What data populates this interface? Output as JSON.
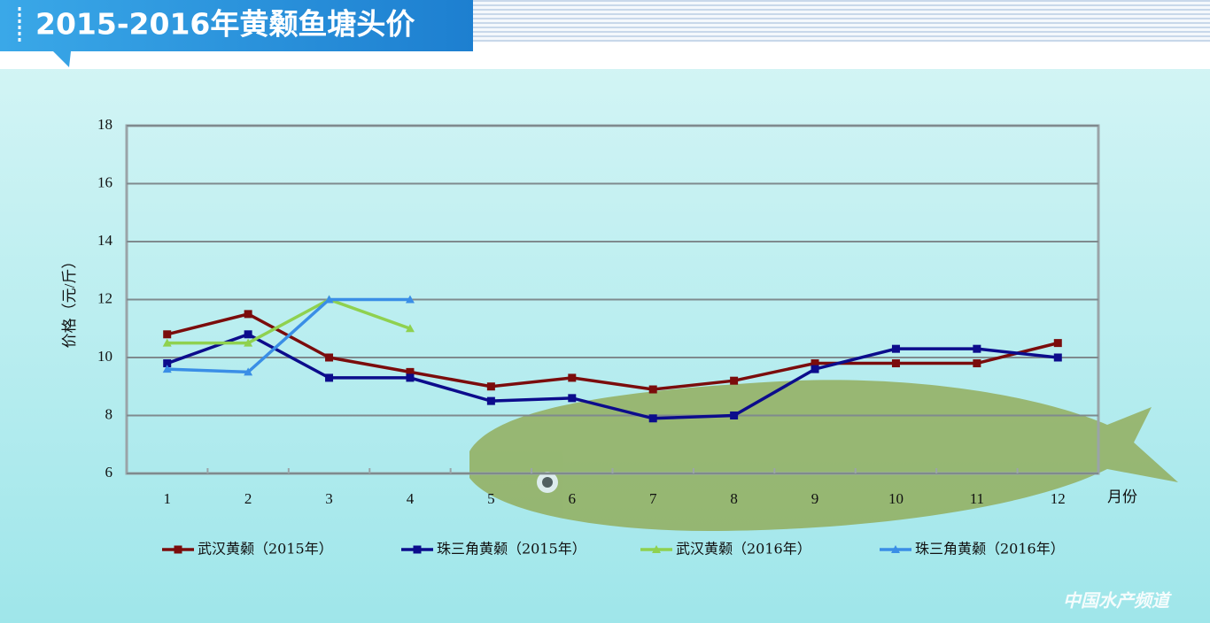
{
  "chart_data": {
    "type": "line",
    "title": "2015-2016年黄颡鱼塘头价",
    "y_label": "价格（元/斤）",
    "x_label": "月份",
    "watermark": "中国水产频道",
    "categories": [
      "1",
      "2",
      "3",
      "4",
      "5",
      "6",
      "7",
      "8",
      "9",
      "10",
      "11",
      "12"
    ],
    "series": [
      {
        "name": "武汉黄颡（2015年）",
        "color": "#7b0c0c",
        "marker": "square",
        "values": [
          10.8,
          11.5,
          10.0,
          9.5,
          9.0,
          9.3,
          8.9,
          9.2,
          9.8,
          9.8,
          9.8,
          10.5
        ]
      },
      {
        "name": "珠三角黄颡（2015年）",
        "color": "#0c0c8c",
        "marker": "square",
        "values": [
          9.8,
          10.8,
          9.3,
          9.3,
          8.5,
          8.6,
          7.9,
          8.0,
          9.6,
          10.3,
          10.3,
          10.0
        ]
      },
      {
        "name": "武汉黄颡（2016年）",
        "color": "#8fd14f",
        "marker": "triangle",
        "values": [
          10.5,
          10.5,
          12.0,
          11.0,
          null,
          null,
          null,
          null,
          null,
          null,
          null,
          null
        ]
      },
      {
        "name": "珠三角黄颡（2016年）",
        "color": "#3a8ee6",
        "marker": "triangle",
        "values": [
          9.6,
          9.5,
          12.0,
          12.0,
          null,
          null,
          null,
          null,
          null,
          null,
          null,
          null
        ]
      }
    ],
    "ylim": [
      6,
      18
    ],
    "yticks": [
      6,
      8,
      10,
      12,
      14,
      16,
      18
    ],
    "grid": true
  }
}
